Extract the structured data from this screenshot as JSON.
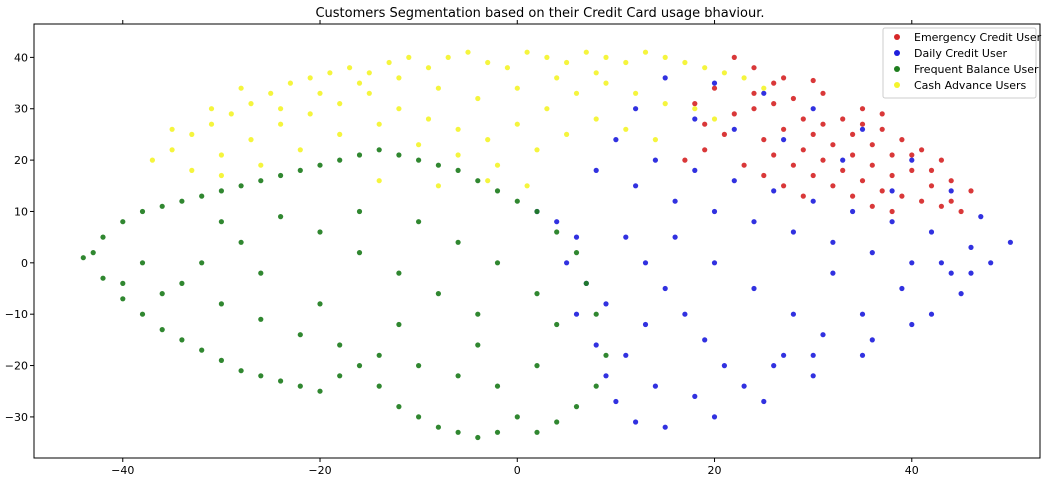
{
  "chart_data": {
    "type": "scatter",
    "title": "Customers Segmentation based on their Credit Card usage bhaviour.",
    "xlabel": "",
    "ylabel": "",
    "xlim": [
      -49,
      53
    ],
    "ylim": [
      -38,
      46.5
    ],
    "xticks": [
      -40,
      -20,
      0,
      20,
      40
    ],
    "yticks": [
      -30,
      -20,
      -10,
      0,
      10,
      20,
      30,
      40
    ],
    "grid": false,
    "legend_position": "top-right",
    "series": [
      {
        "name": "Emergency Credit User",
        "color": "#d62728",
        "points": [
          [
            22,
            40
          ],
          [
            24,
            38
          ],
          [
            27,
            36
          ],
          [
            30,
            35.5
          ],
          [
            31,
            33
          ],
          [
            28,
            32
          ],
          [
            26,
            31
          ],
          [
            24,
            30
          ],
          [
            33,
            28
          ],
          [
            35,
            27
          ],
          [
            37,
            26
          ],
          [
            39,
            24
          ],
          [
            41,
            22
          ],
          [
            43,
            20
          ],
          [
            40,
            18
          ],
          [
            38,
            17
          ],
          [
            36,
            19
          ],
          [
            34,
            21
          ],
          [
            32,
            23
          ],
          [
            30,
            25
          ],
          [
            29,
            22
          ],
          [
            31,
            20
          ],
          [
            33,
            18
          ],
          [
            35,
            16
          ],
          [
            37,
            14
          ],
          [
            39,
            13
          ],
          [
            41,
            12
          ],
          [
            43,
            11
          ],
          [
            45,
            10
          ],
          [
            42,
            15
          ],
          [
            44,
            16
          ],
          [
            40,
            21
          ],
          [
            36,
            23
          ],
          [
            34,
            25
          ],
          [
            31,
            27
          ],
          [
            29,
            28
          ],
          [
            27,
            26
          ],
          [
            25,
            24
          ],
          [
            26,
            21
          ],
          [
            28,
            19
          ],
          [
            30,
            17
          ],
          [
            32,
            15
          ],
          [
            34,
            13
          ],
          [
            36,
            11
          ],
          [
            38,
            10
          ],
          [
            21,
            25
          ],
          [
            19,
            22
          ],
          [
            17,
            20
          ],
          [
            19,
            27
          ],
          [
            22,
            29
          ],
          [
            24,
            33
          ],
          [
            26,
            35
          ],
          [
            20,
            34
          ],
          [
            18,
            31
          ],
          [
            23,
            19
          ],
          [
            25,
            17
          ],
          [
            27,
            15
          ],
          [
            29,
            13
          ],
          [
            42,
            18
          ],
          [
            38,
            21
          ],
          [
            46,
            14
          ],
          [
            44,
            12
          ],
          [
            35,
            30
          ],
          [
            37,
            29
          ]
        ]
      },
      {
        "name": "Daily Credit User",
        "color": "#1f1fdd",
        "points": [
          [
            2,
            10
          ],
          [
            4,
            8
          ],
          [
            6,
            5
          ],
          [
            5,
            0
          ],
          [
            7,
            -4
          ],
          [
            6,
            -10
          ],
          [
            8,
            -16
          ],
          [
            9,
            -22
          ],
          [
            10,
            -27
          ],
          [
            12,
            -31
          ],
          [
            15,
            -32
          ],
          [
            20,
            -30
          ],
          [
            25,
            -27
          ],
          [
            30,
            -22
          ],
          [
            35,
            -18
          ],
          [
            40,
            -12
          ],
          [
            45,
            -6
          ],
          [
            48,
            0
          ],
          [
            50,
            4
          ],
          [
            47,
            9
          ],
          [
            44,
            14
          ],
          [
            40,
            20
          ],
          [
            35,
            26
          ],
          [
            30,
            30
          ],
          [
            25,
            33
          ],
          [
            20,
            35
          ],
          [
            15,
            36
          ],
          [
            12,
            30
          ],
          [
            10,
            24
          ],
          [
            8,
            18
          ],
          [
            12,
            15
          ],
          [
            16,
            12
          ],
          [
            20,
            10
          ],
          [
            24,
            8
          ],
          [
            28,
            6
          ],
          [
            32,
            4
          ],
          [
            36,
            2
          ],
          [
            40,
            0
          ],
          [
            44,
            -2
          ],
          [
            46,
            3
          ],
          [
            42,
            6
          ],
          [
            38,
            8
          ],
          [
            34,
            10
          ],
          [
            30,
            12
          ],
          [
            26,
            14
          ],
          [
            22,
            16
          ],
          [
            18,
            18
          ],
          [
            14,
            20
          ],
          [
            11,
            5
          ],
          [
            13,
            0
          ],
          [
            15,
            -5
          ],
          [
            17,
            -10
          ],
          [
            19,
            -15
          ],
          [
            21,
            -20
          ],
          [
            23,
            -24
          ],
          [
            27,
            -18
          ],
          [
            31,
            -14
          ],
          [
            35,
            -10
          ],
          [
            39,
            -5
          ],
          [
            43,
            0
          ],
          [
            28,
            -10
          ],
          [
            24,
            -5
          ],
          [
            20,
            0
          ],
          [
            16,
            5
          ],
          [
            32,
            -2
          ],
          [
            36,
            -15
          ],
          [
            30,
            -18
          ],
          [
            26,
            -20
          ],
          [
            18,
            -26
          ],
          [
            14,
            -24
          ],
          [
            11,
            -18
          ],
          [
            13,
            -12
          ],
          [
            9,
            -8
          ],
          [
            42,
            -10
          ],
          [
            46,
            -2
          ],
          [
            38,
            14
          ],
          [
            33,
            20
          ],
          [
            27,
            24
          ],
          [
            22,
            26
          ],
          [
            18,
            28
          ]
        ]
      },
      {
        "name": "Frequent Balance User",
        "color": "#1e7d1e",
        "points": [
          [
            -44,
            1
          ],
          [
            -42,
            -3
          ],
          [
            -40,
            -7
          ],
          [
            -38,
            -10
          ],
          [
            -36,
            -13
          ],
          [
            -34,
            -15
          ],
          [
            -32,
            -17
          ],
          [
            -30,
            -19
          ],
          [
            -28,
            -21
          ],
          [
            -26,
            -22
          ],
          [
            -24,
            -23
          ],
          [
            -22,
            -24
          ],
          [
            -20,
            -25
          ],
          [
            -18,
            -22
          ],
          [
            -16,
            -20
          ],
          [
            -14,
            -24
          ],
          [
            -12,
            -28
          ],
          [
            -10,
            -30
          ],
          [
            -8,
            -32
          ],
          [
            -6,
            -33
          ],
          [
            -4,
            -34
          ],
          [
            -2,
            -33
          ],
          [
            0,
            -30
          ],
          [
            2,
            -33
          ],
          [
            4,
            -31
          ],
          [
            6,
            -28
          ],
          [
            8,
            -24
          ],
          [
            9,
            -18
          ],
          [
            8,
            -10
          ],
          [
            7,
            -4
          ],
          [
            6,
            2
          ],
          [
            4,
            6
          ],
          [
            2,
            10
          ],
          [
            0,
            12
          ],
          [
            -2,
            14
          ],
          [
            -4,
            16
          ],
          [
            -6,
            18
          ],
          [
            -8,
            19
          ],
          [
            -10,
            20
          ],
          [
            -12,
            21
          ],
          [
            -14,
            22
          ],
          [
            -16,
            21
          ],
          [
            -18,
            20
          ],
          [
            -20,
            19
          ],
          [
            -22,
            18
          ],
          [
            -24,
            17
          ],
          [
            -26,
            16
          ],
          [
            -28,
            15
          ],
          [
            -30,
            14
          ],
          [
            -32,
            13
          ],
          [
            -34,
            12
          ],
          [
            -36,
            11
          ],
          [
            -38,
            10
          ],
          [
            -40,
            8
          ],
          [
            -42,
            5
          ],
          [
            -43,
            2
          ],
          [
            -38,
            0
          ],
          [
            -34,
            -4
          ],
          [
            -30,
            -8
          ],
          [
            -26,
            -11
          ],
          [
            -22,
            -14
          ],
          [
            -18,
            -16
          ],
          [
            -14,
            -18
          ],
          [
            -10,
            -20
          ],
          [
            -6,
            -22
          ],
          [
            -2,
            -24
          ],
          [
            2,
            -20
          ],
          [
            -4,
            -10
          ],
          [
            -8,
            -6
          ],
          [
            -12,
            -2
          ],
          [
            -16,
            2
          ],
          [
            -20,
            6
          ],
          [
            -24,
            9
          ],
          [
            -28,
            4
          ],
          [
            -32,
            0
          ],
          [
            -36,
            -6
          ],
          [
            -40,
            -4
          ],
          [
            -6,
            4
          ],
          [
            -2,
            0
          ],
          [
            2,
            -6
          ],
          [
            -12,
            -12
          ],
          [
            -20,
            -8
          ],
          [
            -26,
            -2
          ],
          [
            -16,
            10
          ],
          [
            -10,
            8
          ],
          [
            -4,
            -16
          ],
          [
            4,
            -12
          ],
          [
            -30,
            8
          ]
        ]
      },
      {
        "name": "Cash Advance Users",
        "color": "#f4f42c",
        "points": [
          [
            -37,
            20
          ],
          [
            -35,
            22
          ],
          [
            -33,
            25
          ],
          [
            -31,
            27
          ],
          [
            -29,
            29
          ],
          [
            -27,
            31
          ],
          [
            -25,
            33
          ],
          [
            -23,
            35
          ],
          [
            -21,
            36
          ],
          [
            -19,
            37
          ],
          [
            -17,
            38
          ],
          [
            -15,
            37
          ],
          [
            -13,
            39
          ],
          [
            -11,
            40
          ],
          [
            -9,
            38
          ],
          [
            -7,
            40
          ],
          [
            -5,
            41
          ],
          [
            -3,
            39
          ],
          [
            -1,
            38
          ],
          [
            1,
            41
          ],
          [
            3,
            40
          ],
          [
            5,
            39
          ],
          [
            7,
            41
          ],
          [
            9,
            40
          ],
          [
            11,
            39
          ],
          [
            13,
            41
          ],
          [
            15,
            40
          ],
          [
            17,
            39
          ],
          [
            19,
            38
          ],
          [
            21,
            37
          ],
          [
            23,
            36
          ],
          [
            25,
            34
          ],
          [
            -33,
            18
          ],
          [
            -30,
            21
          ],
          [
            -27,
            24
          ],
          [
            -24,
            27
          ],
          [
            -21,
            29
          ],
          [
            -18,
            31
          ],
          [
            -15,
            33
          ],
          [
            -12,
            30
          ],
          [
            -9,
            28
          ],
          [
            -6,
            26
          ],
          [
            -3,
            24
          ],
          [
            0,
            27
          ],
          [
            3,
            30
          ],
          [
            6,
            33
          ],
          [
            9,
            35
          ],
          [
            12,
            33
          ],
          [
            15,
            31
          ],
          [
            18,
            30
          ],
          [
            -26,
            19
          ],
          [
            -22,
            22
          ],
          [
            -18,
            25
          ],
          [
            -14,
            27
          ],
          [
            -10,
            23
          ],
          [
            -6,
            21
          ],
          [
            -2,
            19
          ],
          [
            2,
            22
          ],
          [
            5,
            25
          ],
          [
            8,
            28
          ],
          [
            11,
            26
          ],
          [
            14,
            24
          ],
          [
            -35,
            26
          ],
          [
            -31,
            30
          ],
          [
            -28,
            34
          ],
          [
            -24,
            30
          ],
          [
            -20,
            33
          ],
          [
            -16,
            35
          ],
          [
            -12,
            36
          ],
          [
            -8,
            34
          ],
          [
            -4,
            32
          ],
          [
            0,
            34
          ],
          [
            4,
            36
          ],
          [
            8,
            37
          ],
          [
            -30,
            17
          ],
          [
            -14,
            16
          ],
          [
            -8,
            15
          ],
          [
            -3,
            16
          ],
          [
            1,
            15
          ],
          [
            20,
            28
          ]
        ]
      }
    ]
  }
}
